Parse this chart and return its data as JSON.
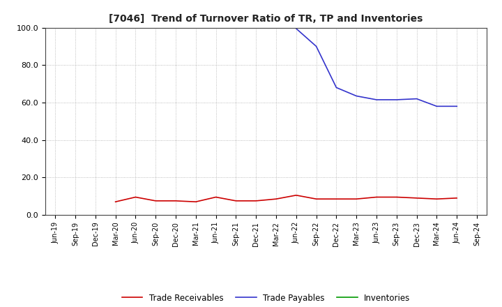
{
  "title": "[7046]  Trend of Turnover Ratio of TR, TP and Inventories",
  "ylim": [
    0,
    100
  ],
  "yticks": [
    0.0,
    20.0,
    40.0,
    60.0,
    80.0,
    100.0
  ],
  "background_color": "#ffffff",
  "grid_color": "#aaaaaa",
  "trade_receivables_color": "#cc0000",
  "trade_payables_color": "#3333cc",
  "inventories_color": "#009900",
  "legend_labels": [
    "Trade Receivables",
    "Trade Payables",
    "Inventories"
  ],
  "x_labels": [
    "Jun-19",
    "Sep-19",
    "Dec-19",
    "Mar-20",
    "Jun-20",
    "Sep-20",
    "Dec-20",
    "Mar-21",
    "Jun-21",
    "Sep-21",
    "Dec-21",
    "Mar-22",
    "Jun-22",
    "Sep-22",
    "Dec-22",
    "Mar-23",
    "Jun-23",
    "Sep-23",
    "Dec-23",
    "Mar-24",
    "Jun-24",
    "Sep-24"
  ],
  "trade_receivables": [
    null,
    null,
    null,
    7.0,
    9.5,
    7.5,
    7.5,
    7.0,
    9.5,
    7.5,
    7.5,
    8.5,
    10.5,
    8.5,
    8.5,
    8.5,
    9.5,
    9.5,
    9.0,
    8.5,
    9.0,
    null
  ],
  "trade_payables": [
    null,
    null,
    null,
    null,
    null,
    null,
    null,
    null,
    null,
    null,
    null,
    null,
    99.5,
    90.0,
    68.0,
    63.5,
    61.5,
    61.5,
    62.0,
    58.0,
    58.0,
    null
  ],
  "inventories": []
}
